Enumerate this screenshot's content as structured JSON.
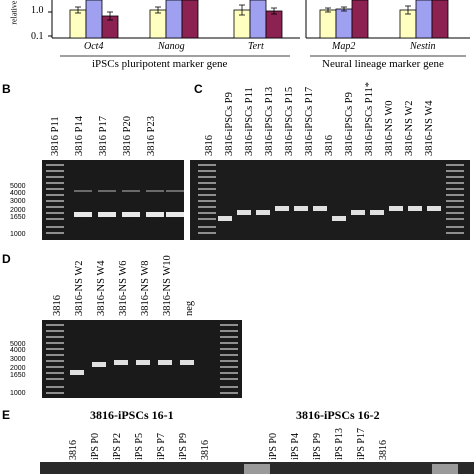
{
  "panel_a": {
    "y_axis_fragment": "relative m",
    "ytick_1": "1.0",
    "ytick_01": "0.1",
    "genes": [
      "Oct4",
      "Nanog",
      "Tert",
      "Map2",
      "Nestin"
    ],
    "group_pluripotent": "iPSCs pluripotent marker gene",
    "group_neural": "Neural lineage marker gene",
    "bar_colors": [
      "#ffffc0",
      "#a0a0f0",
      "#8b2252"
    ]
  },
  "panel_b": {
    "letter": "B",
    "lanes": [
      "3816 P11",
      "3816 P14",
      "3816 P17",
      "3816 P20",
      "3816 P23"
    ],
    "markers": [
      "5000",
      "4000",
      "3000",
      "2000",
      "1650",
      "1000"
    ]
  },
  "panel_c": {
    "letter": "C",
    "lanes": [
      "3816",
      "3816-iPSCs P9",
      "3816-iPSCs P11",
      "3816-iPSCs P13",
      "3816-iPSCs P15",
      "3816-iPSCs P17",
      "3816",
      "3816-iPSCs P9",
      "3816-iPSCs P11*",
      "3816-NS W0",
      "3816-NS W2",
      "3816-NS W4"
    ]
  },
  "panel_d": {
    "letter": "D",
    "lanes": [
      "3816",
      "3816-NS W2",
      "3816-NS W4",
      "3816-NS W6",
      "3816-NS W8",
      "3816-NS W10",
      "neg"
    ],
    "markers": [
      "5000",
      "4000",
      "3000",
      "2000",
      "1650",
      "1000"
    ]
  },
  "panel_e": {
    "letter": "E",
    "group1_title": "3816-iPSCs 16-1",
    "group2_title": "3816-iPSCs 16-2",
    "lanes1": [
      "3816",
      "iPS P0",
      "iPS P2",
      "iPS P5",
      "iPS P7",
      "iPS P9",
      "3816"
    ],
    "lanes2": [
      "iPS P0",
      "iPS P4",
      "iPS P9",
      "iPS P13",
      "iPS P17",
      "3816"
    ]
  }
}
